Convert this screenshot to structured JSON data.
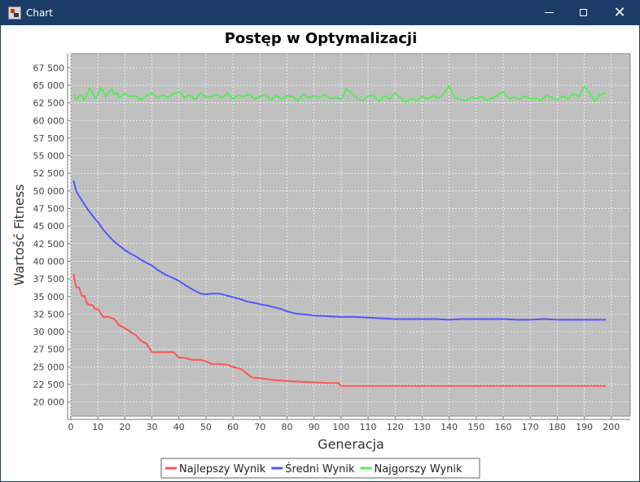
{
  "window": {
    "title": "Chart",
    "icons": [
      "app-icon",
      "minimize-icon",
      "maximize-icon",
      "close-icon"
    ]
  },
  "chart_data": {
    "type": "line",
    "title": "Postęp w Optymalizacji",
    "xlabel": "Generacja",
    "ylabel": "Wartość Fitness",
    "xlim": [
      0,
      207
    ],
    "ylim": [
      18000,
      69500
    ],
    "xticks": [
      "0",
      "10",
      "20",
      "30",
      "40",
      "50",
      "60",
      "70",
      "80",
      "90",
      "100",
      "110",
      "120",
      "130",
      "140",
      "150",
      "160",
      "170",
      "180",
      "190",
      "200"
    ],
    "yticks": [
      "20 000",
      "22 500",
      "25 000",
      "27 500",
      "30 000",
      "32 500",
      "35 000",
      "37 500",
      "40 000",
      "42 500",
      "45 000",
      "47 500",
      "50 000",
      "52 500",
      "55 000",
      "57 500",
      "60 000",
      "62 500",
      "65 000",
      "67 500"
    ],
    "grid": true,
    "legend_position": "bottom",
    "background_color": "#c0c0c0",
    "series": [
      {
        "name": "Najlepszy Wynik",
        "color": "#ff5555",
        "x": [
          1,
          2,
          3,
          4,
          5,
          6,
          7,
          8,
          9,
          10,
          12,
          14,
          16,
          18,
          20,
          22,
          24,
          26,
          28,
          30,
          32,
          35,
          38,
          40,
          42,
          45,
          48,
          50,
          52,
          55,
          58,
          60,
          63,
          65,
          67,
          70,
          72,
          75,
          80,
          85,
          90,
          95,
          97,
          99,
          100,
          110,
          120,
          130,
          140,
          150,
          160,
          170,
          180,
          190,
          198
        ],
        "y": [
          38200,
          36300,
          36300,
          35100,
          35100,
          34000,
          33800,
          33800,
          33200,
          33200,
          32100,
          32100,
          31800,
          30900,
          30500,
          30000,
          29500,
          28700,
          28300,
          27100,
          27100,
          27100,
          27100,
          26300,
          26300,
          26000,
          26000,
          25800,
          25400,
          25400,
          25300,
          25000,
          24700,
          24100,
          23500,
          23400,
          23300,
          23100,
          23000,
          22900,
          22800,
          22700,
          22700,
          22700,
          22300,
          22300,
          22300,
          22300,
          22300,
          22300,
          22300,
          22300,
          22300,
          22300,
          22300
        ]
      },
      {
        "name": "Średni Wynik",
        "color": "#5555ff",
        "x": [
          1,
          2,
          3,
          4,
          5,
          6,
          7,
          8,
          9,
          10,
          12,
          14,
          16,
          18,
          20,
          22,
          24,
          26,
          28,
          30,
          32,
          35,
          38,
          40,
          42,
          45,
          48,
          50,
          52,
          55,
          58,
          60,
          63,
          65,
          68,
          70,
          73,
          75,
          78,
          80,
          83,
          85,
          88,
          90,
          95,
          100,
          105,
          110,
          115,
          120,
          125,
          130,
          135,
          140,
          145,
          150,
          155,
          160,
          165,
          170,
          175,
          180,
          185,
          190,
          195,
          198
        ],
        "y": [
          51500,
          50000,
          49300,
          48700,
          48100,
          47500,
          47000,
          46500,
          46000,
          45600,
          44500,
          43600,
          42800,
          42200,
          41600,
          41100,
          40700,
          40200,
          39800,
          39400,
          38800,
          38100,
          37600,
          37200,
          36700,
          36000,
          35400,
          35300,
          35400,
          35400,
          35100,
          34900,
          34600,
          34300,
          34100,
          33900,
          33700,
          33500,
          33200,
          32900,
          32600,
          32500,
          32400,
          32300,
          32200,
          32100,
          32100,
          32000,
          31900,
          31800,
          31800,
          31800,
          31800,
          31700,
          31800,
          31800,
          31800,
          31800,
          31700,
          31700,
          31800,
          31700,
          31700,
          31700,
          31700,
          31700
        ]
      },
      {
        "name": "Najgorszy Wynik",
        "color": "#55ee55",
        "x": [
          1,
          2,
          3,
          4,
          5,
          6,
          7,
          8,
          9,
          10,
          11,
          12,
          13,
          14,
          15,
          16,
          17,
          18,
          19,
          20,
          22,
          24,
          26,
          28,
          30,
          32,
          34,
          36,
          38,
          40,
          42,
          44,
          46,
          48,
          50,
          52,
          54,
          56,
          58,
          60,
          62,
          64,
          66,
          68,
          70,
          72,
          74,
          76,
          78,
          80,
          82,
          84,
          86,
          88,
          90,
          92,
          94,
          96,
          98,
          100,
          102,
          104,
          106,
          108,
          110,
          112,
          114,
          116,
          118,
          120,
          122,
          124,
          126,
          128,
          130,
          132,
          134,
          136,
          138,
          140,
          142,
          144,
          146,
          148,
          150,
          152,
          154,
          156,
          158,
          160,
          162,
          164,
          166,
          168,
          170,
          172,
          174,
          176,
          178,
          180,
          182,
          184,
          186,
          188,
          190,
          192,
          194,
          196,
          198
        ],
        "y": [
          63800,
          63000,
          63500,
          63600,
          62900,
          63800,
          64600,
          64000,
          63100,
          63700,
          64700,
          64200,
          63400,
          64000,
          64500,
          63700,
          63900,
          63200,
          63600,
          63800,
          63400,
          63500,
          62900,
          63600,
          63900,
          63200,
          63600,
          63300,
          63800,
          64100,
          63300,
          63600,
          63000,
          63900,
          63300,
          63400,
          63700,
          63200,
          63900,
          63100,
          63600,
          63400,
          63800,
          63000,
          63400,
          63700,
          62900,
          63600,
          63000,
          63500,
          63400,
          62800,
          63700,
          63200,
          63500,
          63300,
          63700,
          63100,
          63300,
          63000,
          64500,
          63900,
          63100,
          62800,
          63500,
          63600,
          62700,
          63500,
          63100,
          63900,
          63200,
          62600,
          63100,
          62800,
          63400,
          63100,
          63500,
          63200,
          63900,
          64900,
          63200,
          63000,
          62800,
          63300,
          63100,
          63400,
          62900,
          63200,
          63600,
          64100,
          63100,
          63300,
          63000,
          63500,
          63100,
          63200,
          62800,
          63600,
          63200,
          62900,
          63500,
          63100,
          63800,
          63400,
          64800,
          63900,
          62700,
          63700,
          63900
        ]
      }
    ]
  }
}
